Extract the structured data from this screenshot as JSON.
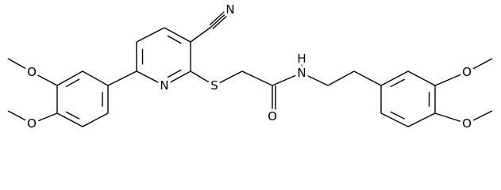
{
  "atoms": [
    {
      "label": "N"
    },
    {
      "label": "N"
    },
    {
      "label": "S"
    },
    {
      "label": "O"
    },
    {
      "label": "N"
    },
    {
      "label": "H"
    },
    {
      "label": "O"
    },
    {
      "label": "O"
    },
    {
      "label": "O"
    },
    {
      "label": "O"
    }
  ]
}
